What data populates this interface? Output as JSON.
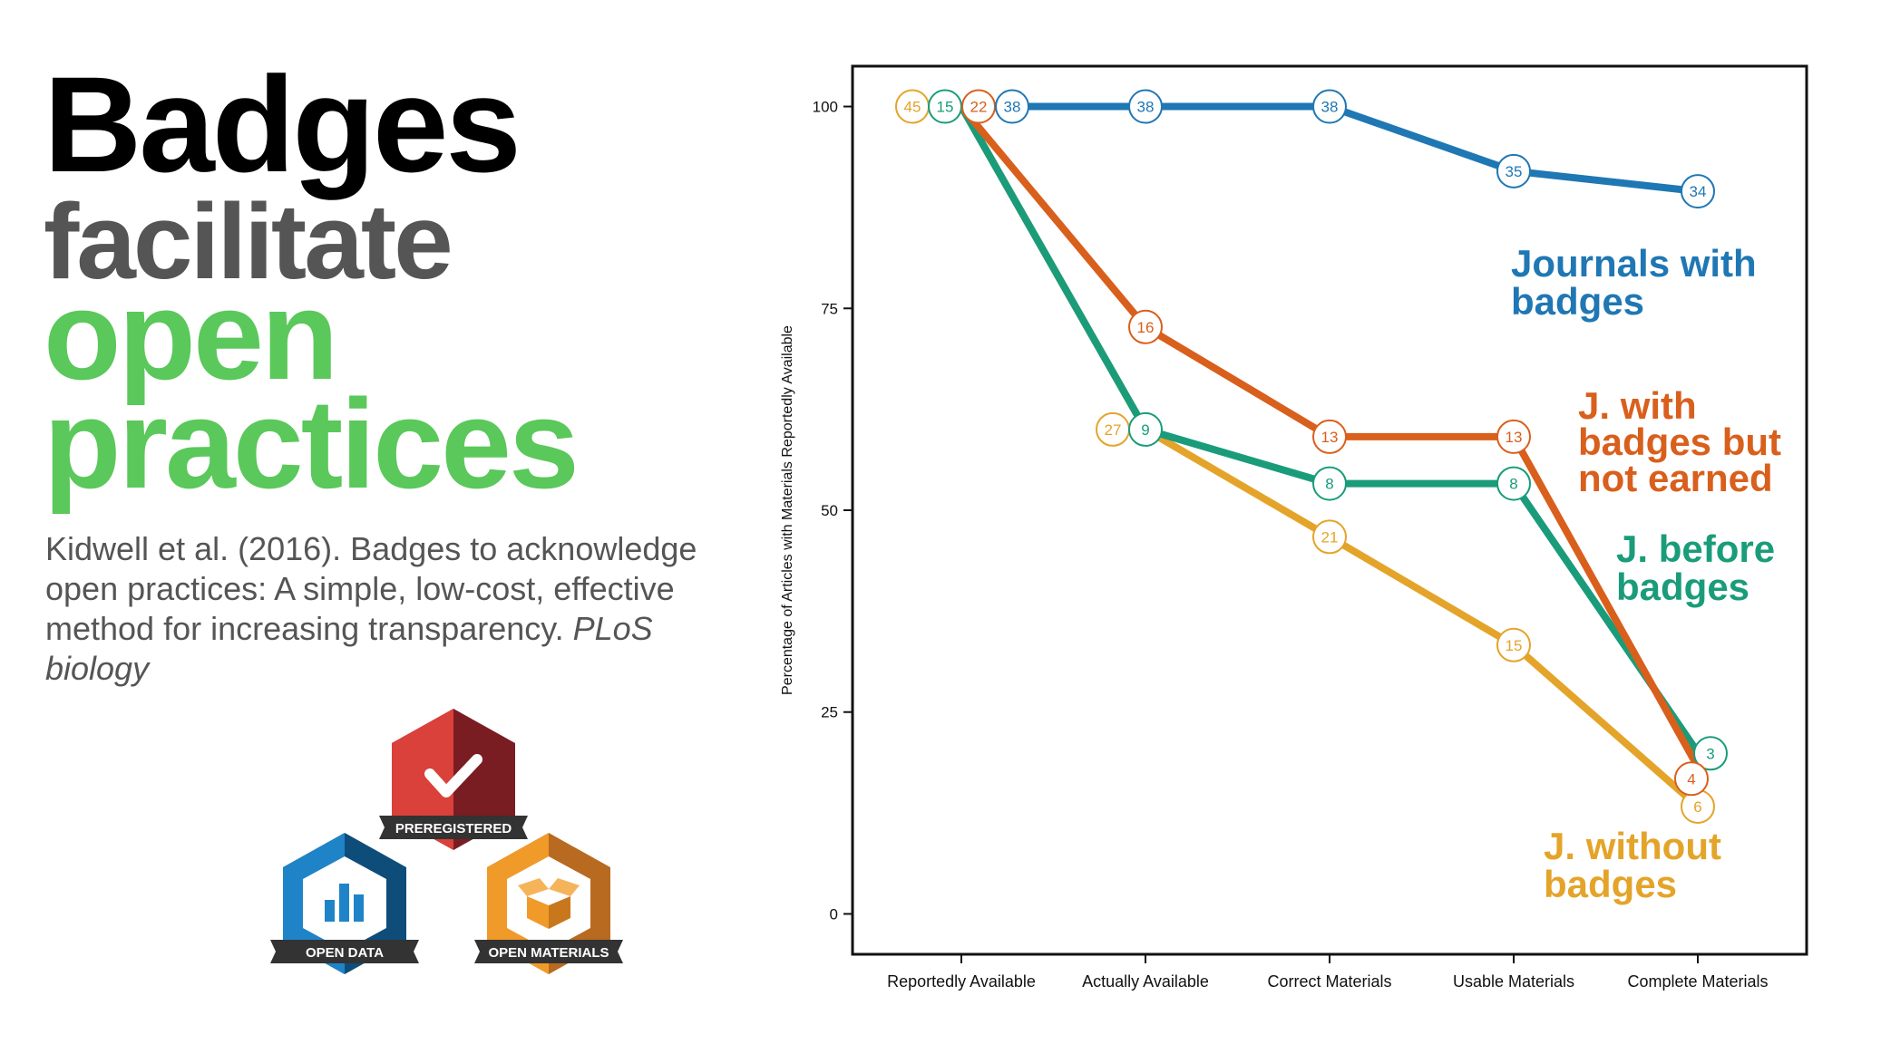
{
  "title": {
    "line1": "Badges",
    "line2": "facilitate",
    "line3": "open",
    "line4": "practices",
    "colors": {
      "line1": "#000000",
      "line2": "#555555",
      "line3": "#5ac85a",
      "line4": "#5ac85a"
    }
  },
  "citation": {
    "text": "Kidwell et al. (2016). Badges to acknowledge open practices: A simple, low-cost, effective method for increasing transparency. ",
    "journal": "PLoS biology"
  },
  "badges": [
    {
      "label": "PREREGISTERED",
      "icon": "checkmark-icon",
      "color": "#d9413a",
      "dark": "#7a1d22"
    },
    {
      "label": "OPEN DATA",
      "icon": "bar-chart-icon",
      "color": "#1f84c7",
      "dark": "#0e4d7a"
    },
    {
      "label": "OPEN MATERIALS",
      "icon": "open-box-icon",
      "color": "#f09a2a",
      "dark": "#b86a20"
    }
  ],
  "chart_data": {
    "type": "line",
    "categories": [
      "Reportedly Available",
      "Actually Available",
      "Correct Materials",
      "Usable Materials",
      "Complete Materials"
    ],
    "ylabel": "Percentage of Articles with Materials Reportedly Available",
    "ylim": [
      -5,
      105
    ],
    "yticks": [
      0,
      25,
      50,
      75,
      100
    ],
    "grid": false,
    "series": [
      {
        "name": "Journals with badges",
        "color": "#1f77b4",
        "values": [
          100,
          100,
          100,
          92,
          89.5
        ],
        "counts": [
          "38",
          "38",
          "38",
          "35",
          "34"
        ]
      },
      {
        "name": "J. with badges but not earned",
        "color": "#d95f1c",
        "values": [
          100,
          72.7,
          59.1,
          59.1,
          18.2
        ],
        "counts": [
          "22",
          "16",
          "13",
          "13",
          "4"
        ]
      },
      {
        "name": "J. before badges",
        "color": "#1a9c7a",
        "values": [
          100,
          60,
          53.3,
          53.3,
          20
        ],
        "counts": [
          "15",
          "9",
          "8",
          "8",
          "3"
        ]
      },
      {
        "name": "J. without badges",
        "color": "#e4a42a",
        "values": [
          100,
          60,
          46.7,
          33.3,
          13.3
        ],
        "counts": [
          "45",
          "27",
          "21",
          "15",
          "6"
        ]
      }
    ],
    "legend_labels": [
      {
        "lines": [
          "Journals with",
          "badges"
        ],
        "color": "#1f77b4",
        "placement": "upper-right"
      },
      {
        "lines": [
          "J. with",
          "badges but",
          "not earned"
        ],
        "color": "#d95f1c",
        "placement": "middle-right"
      },
      {
        "lines": [
          "J. before",
          "badges"
        ],
        "color": "#1a9c7a",
        "placement": "lower-middle-right"
      },
      {
        "lines": [
          "J. without",
          "badges"
        ],
        "color": "#e4a42a",
        "placement": "bottom-right"
      }
    ]
  }
}
